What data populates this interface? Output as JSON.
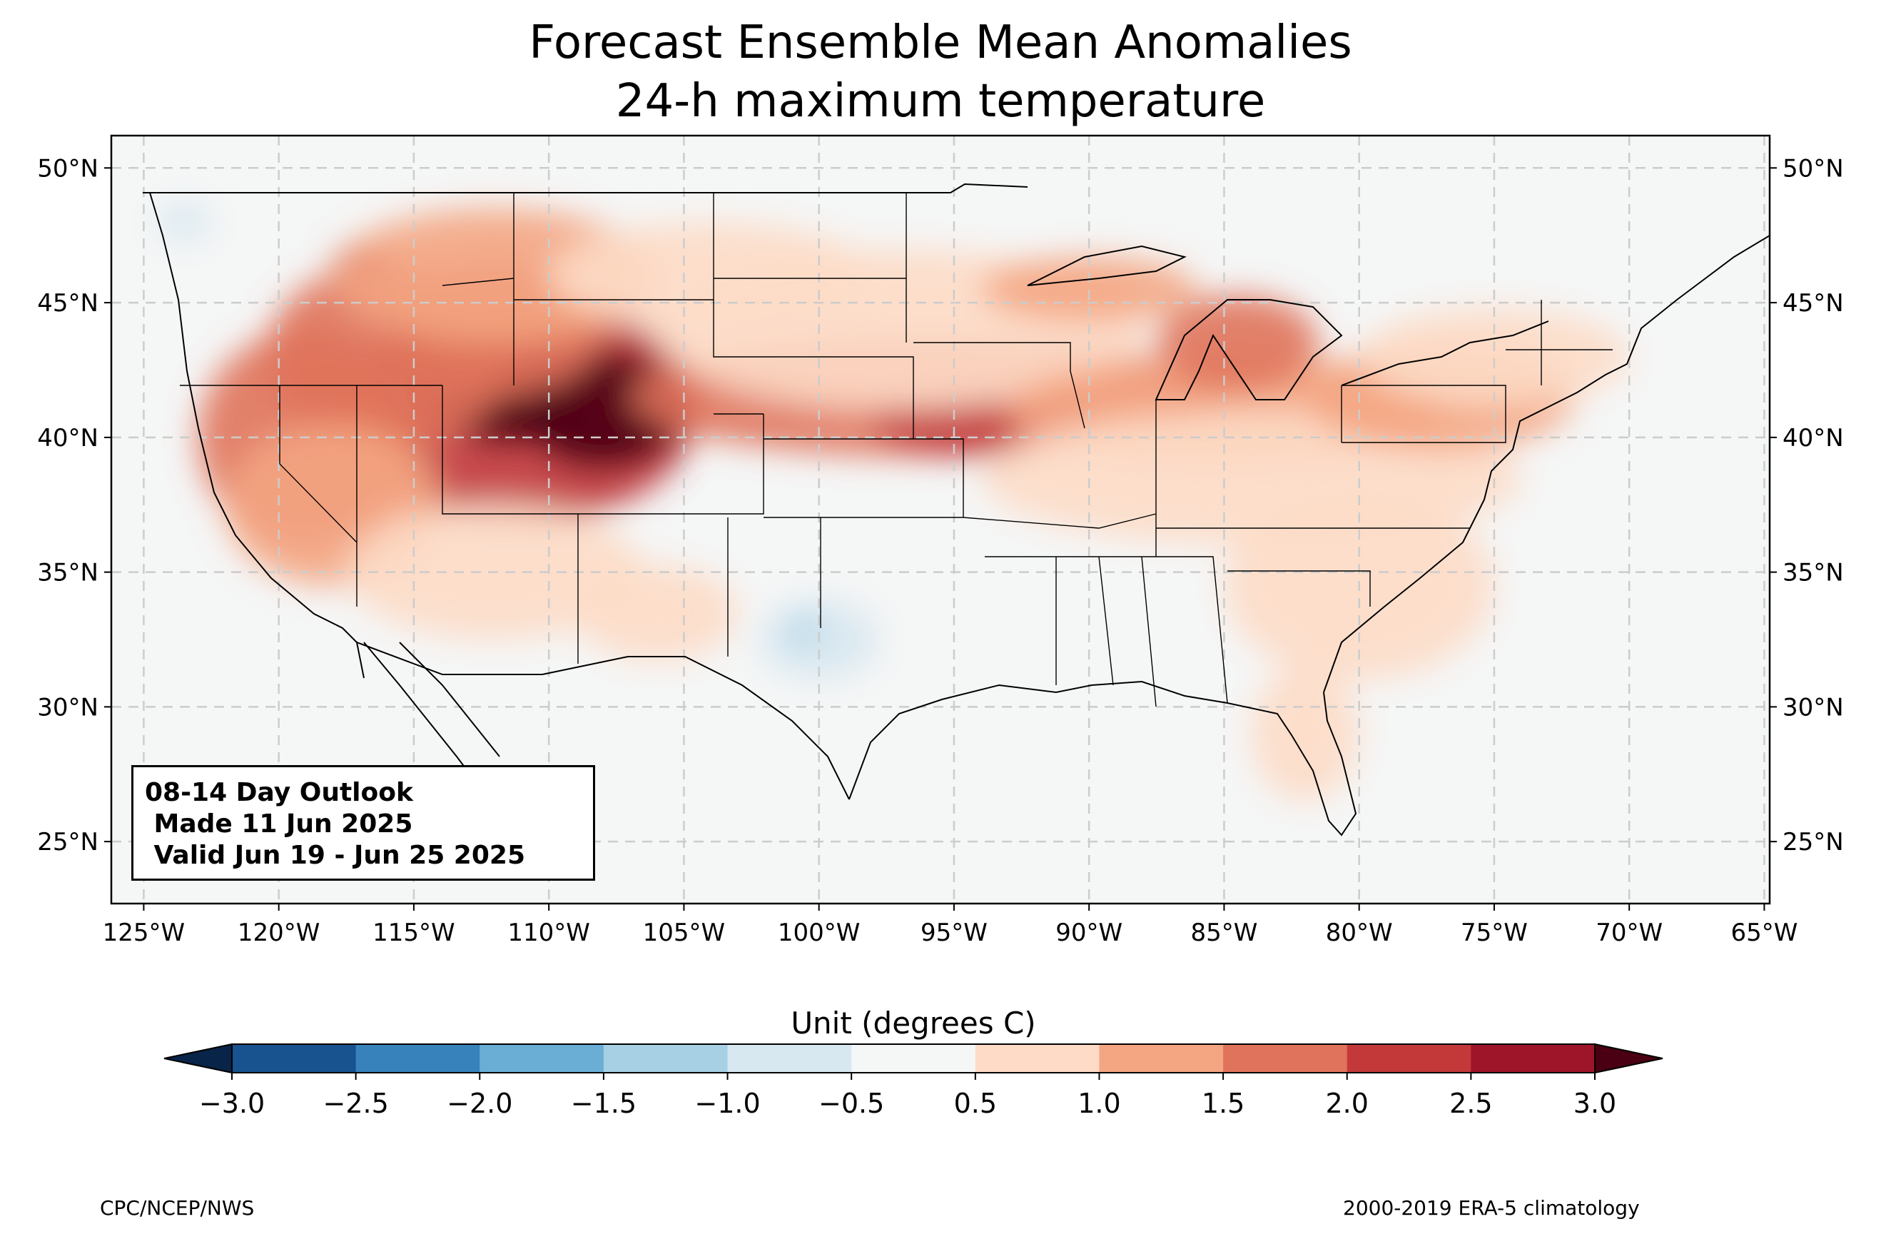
{
  "title": {
    "line1": "Forecast Ensemble Mean Anomalies",
    "line2": "24-h maximum temperature"
  },
  "map": {
    "lon_range": [
      -126.2,
      -64.8
    ],
    "lat_range": [
      22.7,
      51.2
    ],
    "lon_ticks": [
      {
        "value": -125,
        "label": "125°W"
      },
      {
        "value": -120,
        "label": "120°W"
      },
      {
        "value": -115,
        "label": "115°W"
      },
      {
        "value": -110,
        "label": "110°W"
      },
      {
        "value": -105,
        "label": "105°W"
      },
      {
        "value": -100,
        "label": "100°W"
      },
      {
        "value": -95,
        "label": "95°W"
      },
      {
        "value": -90,
        "label": "90°W"
      },
      {
        "value": -85,
        "label": "85°W"
      },
      {
        "value": -80,
        "label": "80°W"
      },
      {
        "value": -75,
        "label": "75°W"
      },
      {
        "value": -70,
        "label": "70°W"
      },
      {
        "value": -65,
        "label": "65°W"
      }
    ],
    "lat_ticks": [
      {
        "value": 50,
        "label": "50°N"
      },
      {
        "value": 45,
        "label": "45°N"
      },
      {
        "value": 40,
        "label": "40°N"
      },
      {
        "value": 35,
        "label": "35°N"
      },
      {
        "value": 30,
        "label": "30°N"
      },
      {
        "value": 25,
        "label": "25°N"
      }
    ],
    "gridlines": true,
    "colors": {
      "land": "#f5f6f6",
      "outline": "#000000",
      "grid": "#cccccc"
    }
  },
  "anomaly_fields": [
    {
      "lon": -111,
      "lat": 41.0,
      "rx": 6.5,
      "ry": 4.2,
      "value": 2.2
    },
    {
      "lon": -108,
      "lat": 41.0,
      "rx": 3.0,
      "ry": 2.2,
      "value": 3.1
    },
    {
      "lon": -111.5,
      "lat": 41.2,
      "rx": 2.5,
      "ry": 1.5,
      "value": 3.1
    },
    {
      "lon": -116,
      "lat": 43.0,
      "rx": 4.5,
      "ry": 3.5,
      "value": 1.6
    },
    {
      "lon": -112,
      "lat": 44.0,
      "rx": 4.0,
      "ry": 2.5,
      "value": 1.8
    },
    {
      "lon": -117,
      "lat": 46.5,
      "rx": 1.0,
      "ry": 0.6,
      "value": 2.7
    },
    {
      "lon": -119,
      "lat": 40.0,
      "rx": 4.0,
      "ry": 4.0,
      "value": 1.6
    },
    {
      "lon": -118,
      "lat": 37.5,
      "rx": 4.0,
      "ry": 3.0,
      "value": 1.2
    },
    {
      "lon": -112,
      "lat": 35.0,
      "rx": 5.5,
      "ry": 2.5,
      "value": 0.8
    },
    {
      "lon": -106,
      "lat": 33.5,
      "rx": 3.0,
      "ry": 1.8,
      "value": 0.7
    },
    {
      "lon": -112,
      "lat": 46.0,
      "rx": 6.0,
      "ry": 2.5,
      "value": 1.2
    },
    {
      "lon": -104,
      "lat": 46.0,
      "rx": 6.0,
      "ry": 2.0,
      "value": 0.8
    },
    {
      "lon": -96,
      "lat": 41.5,
      "rx": 11.0,
      "ry": 2.2,
      "value": 1.7
    },
    {
      "lon": -94,
      "lat": 40.5,
      "rx": 4.0,
      "ry": 1.2,
      "value": 2.2
    },
    {
      "lon": -97,
      "lat": 44.0,
      "rx": 9.0,
      "ry": 3.0,
      "value": 0.8
    },
    {
      "lon": -90,
      "lat": 45.5,
      "rx": 4.0,
      "ry": 1.2,
      "value": 1.2
    },
    {
      "lon": -85,
      "lat": 41.0,
      "rx": 8.0,
      "ry": 2.0,
      "value": 1.3
    },
    {
      "lon": -84.5,
      "lat": 43.5,
      "rx": 3.0,
      "ry": 1.8,
      "value": 1.6
    },
    {
      "lon": -84,
      "lat": 38.5,
      "rx": 10.0,
      "ry": 2.5,
      "value": 0.8
    },
    {
      "lon": -77,
      "lat": 41.5,
      "rx": 5.0,
      "ry": 2.0,
      "value": 1.3
    },
    {
      "lon": -75,
      "lat": 43.0,
      "rx": 5.0,
      "ry": 1.8,
      "value": 0.8
    },
    {
      "lon": -80,
      "lat": 34.5,
      "rx": 5.0,
      "ry": 3.5,
      "value": 0.7
    },
    {
      "lon": -82,
      "lat": 29.0,
      "rx": 2.0,
      "ry": 2.5,
      "value": 0.6
    },
    {
      "lon": -100,
      "lat": 32.5,
      "rx": 2.2,
      "ry": 1.5,
      "value": -0.8
    },
    {
      "lon": -100.5,
      "lat": 32.8,
      "rx": 0.6,
      "ry": 0.5,
      "value": -1.1
    },
    {
      "lon": -123.5,
      "lat": 48.0,
      "rx": 1.0,
      "ry": 0.7,
      "value": -0.6
    }
  ],
  "colorbar": {
    "label": "Unit (degrees C)",
    "levels": [
      -3.0,
      -2.5,
      -2.0,
      -1.5,
      -1.0,
      -0.5,
      0.5,
      1.0,
      1.5,
      2.0,
      2.5,
      3.0
    ],
    "tick_labels": [
      "−3.0",
      "−2.5",
      "−2.0",
      "−1.5",
      "−1.0",
      "−0.5",
      "0.5",
      "1.0",
      "1.5",
      "2.0",
      "2.5",
      "3.0"
    ],
    "colors": [
      "#18528f",
      "#3782bb",
      "#6aaed6",
      "#a8d0e4",
      "#d8e8f1",
      "#f5f6f6",
      "#fddbc7",
      "#f4a582",
      "#e0735b",
      "#c3393a",
      "#9e1428"
    ],
    "under_color": "#082448",
    "over_color": "#4a0012",
    "extend": "both"
  },
  "outlook": {
    "line1": "08-14 Day Outlook",
    "line2": " Made 11 Jun 2025",
    "line3": " Valid Jun 19 - Jun 25 2025"
  },
  "credits": {
    "left": "CPC/NCEP/NWS",
    "right": "2000-2019 ERA-5 climatology"
  }
}
